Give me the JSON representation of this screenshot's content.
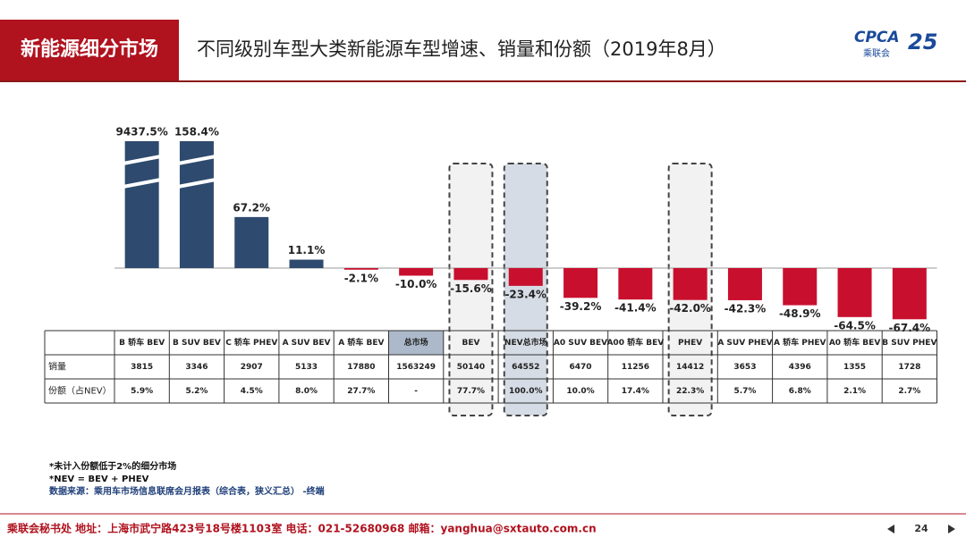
{
  "header": {
    "section": "新能源细分市场",
    "title": "不同级别车型大类新能源车型增速、销量和份额（2019年8月）",
    "logo": [
      "CPCA",
      "乘联会",
      "25"
    ]
  },
  "chart_data": {
    "type": "bar",
    "categories": [
      "B 轿车 BEV",
      "B SUV BEV",
      "C 轿车 PHEV",
      "A SUV BEV",
      "A 轿车 BEV",
      "总市场",
      "BEV",
      "NEV总市场",
      "A0 SUV BEV",
      "A00 轿车 BEV",
      "PHEV",
      "A SUV PHEV",
      "A 轿车 PHEV",
      "A0 轿车 BEV",
      "B SUV PHEV"
    ],
    "values": [
      9437.5,
      158.4,
      67.2,
      11.1,
      -2.1,
      -10.0,
      -15.6,
      -23.4,
      -39.2,
      -41.4,
      -42.0,
      -42.3,
      -48.9,
      -64.5,
      -67.4
    ],
    "value_labels": [
      "9437.5%",
      "158.4%",
      "67.2%",
      "11.1%",
      "-2.1%",
      "-10.0%",
      "-15.6%",
      "-23.4%",
      "-39.2%",
      "-41.4%",
      "-42.0%",
      "-42.3%",
      "-48.9%",
      "-64.5%",
      "-67.4%"
    ],
    "positive_color": "#2e4a6e",
    "negative_color": "#c8102e",
    "ylim": [
      -80,
      120
    ],
    "broken_bars": true
  },
  "table": {
    "rows": [
      {
        "label": "销量",
        "values": [
          "3815",
          "3346",
          "2907",
          "5133",
          "17880",
          "1563249",
          "50140",
          "64552",
          "6470",
          "11256",
          "14412",
          "3653",
          "4396",
          "1355",
          "1728"
        ]
      },
      {
        "label": "份额（占NEV）",
        "values": [
          "5.9%",
          "5.2%",
          "4.5%",
          "8.0%",
          "27.7%",
          "-",
          "77.7%",
          "100.0%",
          "10.0%",
          "17.4%",
          "22.3%",
          "5.7%",
          "6.8%",
          "2.1%",
          "2.7%"
        ]
      }
    ]
  },
  "notes": [
    "*未计入份额低于2%的细分市场",
    "*NEV = BEV + PHEV",
    "数据来源：乘用车市场信息联席会月报表（综合表，狭义汇总） -终端"
  ],
  "footer": {
    "text": "乘联会秘书处  地址：上海市武宁路423号18号楼1103室  电话：021-52680968  邮箱：yanghua@sxtauto.com.cn",
    "page": "24"
  }
}
